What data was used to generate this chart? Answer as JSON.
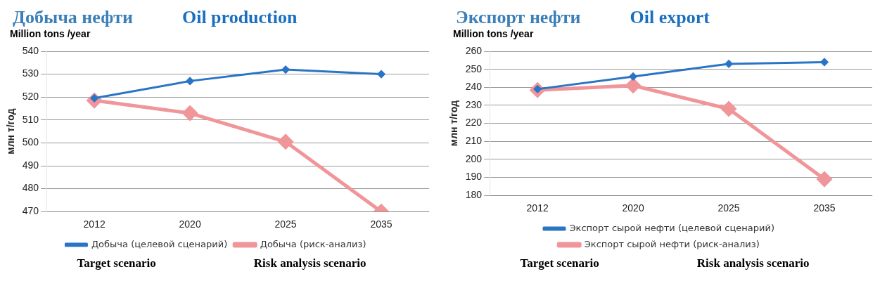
{
  "chart_data": [
    {
      "type": "line",
      "title": "Добыча нефти",
      "subtitle": "Oil production",
      "ylabel": "млн т/год",
      "categories": [
        "2012",
        "2020",
        "2025",
        "2035"
      ],
      "series": [
        {
          "name": "Добыча (целевой сценарий)",
          "color": "#2a74c6",
          "values": [
            519.5,
            527,
            532,
            530
          ]
        },
        {
          "name": "Добыча (риск-анализ)",
          "color": "#f0969a",
          "values": [
            518.5,
            513,
            500.5,
            470
          ]
        }
      ],
      "ylim": [
        470,
        540
      ],
      "yticks": [
        470,
        480,
        490,
        500,
        510,
        520,
        530,
        540
      ],
      "grid": "y",
      "legend": "bottom",
      "marker": "diamond",
      "line_style": "solid",
      "annotations": [
        "Million tons /year",
        "Target scenario",
        "Risk analysis scenario"
      ]
    },
    {
      "type": "line",
      "title": "Экспорт нефти",
      "subtitle": "Oil export",
      "ylabel": "млн т/год",
      "categories": [
        "2012",
        "2020",
        "2025",
        "2035"
      ],
      "series": [
        {
          "name": "Экспорт сырой нефти (целевой сценарий)",
          "color": "#2a74c6",
          "values": [
            239,
            246,
            253,
            254
          ]
        },
        {
          "name": "Экспорт сырой нефти (риск-анализ)",
          "color": "#f0969a",
          "values": [
            238.5,
            241,
            228,
            189
          ]
        }
      ],
      "ylim": [
        180,
        260
      ],
      "yticks": [
        180,
        190,
        200,
        210,
        220,
        230,
        240,
        250,
        260
      ],
      "grid": "y",
      "legend": "bottom",
      "marker": "diamond",
      "line_style": "solid",
      "annotations": [
        "Million tons /year",
        "Target scenario",
        "Risk analysis scenario"
      ]
    }
  ]
}
